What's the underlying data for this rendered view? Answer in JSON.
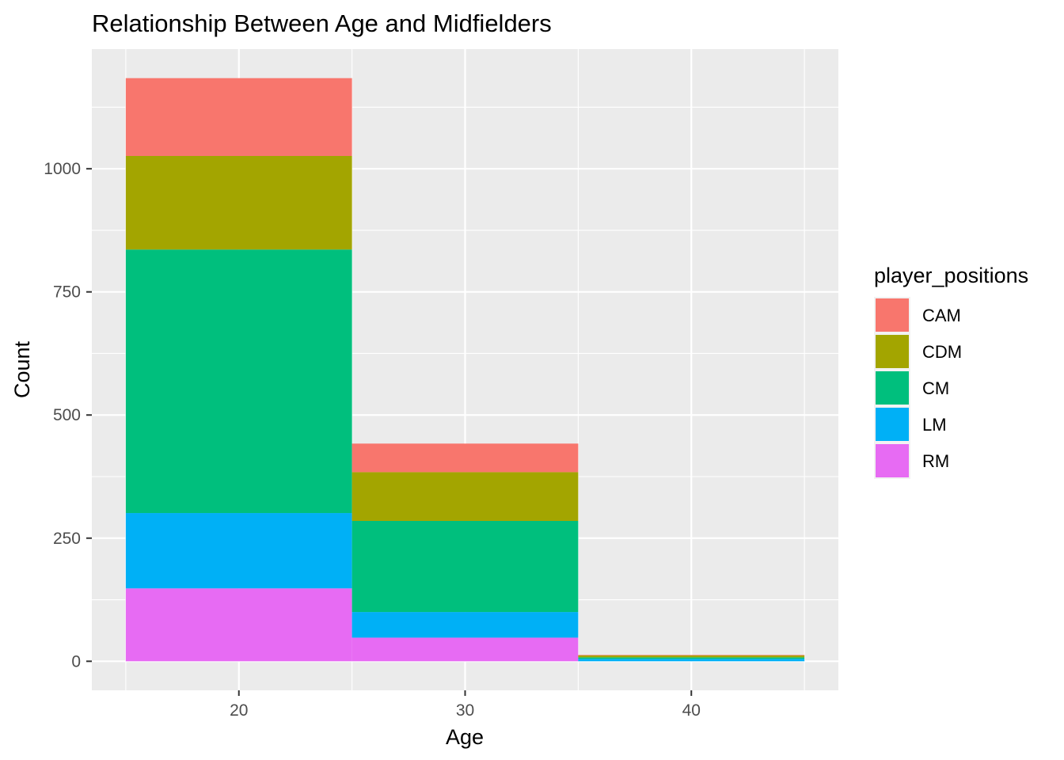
{
  "chart_data": {
    "type": "bar",
    "stacked": true,
    "title": "Relationship Between Age and  Midfielders",
    "xlabel": "Age",
    "ylabel": "Count",
    "bins": [
      {
        "from": 15,
        "to": 25
      },
      {
        "from": 25,
        "to": 35
      },
      {
        "from": 35,
        "to": 45
      }
    ],
    "series": [
      {
        "name": "RM",
        "color": "#E76BF3",
        "values": [
          148,
          48,
          0
        ]
      },
      {
        "name": "LM",
        "color": "#00B0F6",
        "values": [
          153,
          52,
          5
        ]
      },
      {
        "name": "CM",
        "color": "#00BF7D",
        "values": [
          535,
          185,
          3
        ]
      },
      {
        "name": "CDM",
        "color": "#A3A500",
        "values": [
          190,
          99,
          4
        ]
      },
      {
        "name": "CAM",
        "color": "#F8766D",
        "values": [
          158,
          58,
          1
        ]
      }
    ],
    "x_ticks": [
      20,
      30,
      40
    ],
    "y_ticks": [
      0,
      250,
      500,
      750,
      1000
    ],
    "xlim": [
      13.5,
      46.5
    ],
    "ylim": [
      -59,
      1243
    ],
    "grid": true,
    "legend": {
      "title": "player_positions",
      "placement": "right",
      "order": [
        "CAM",
        "CDM",
        "CM",
        "LM",
        "RM"
      ]
    },
    "colors": {
      "panel_background": "#EBEBEB",
      "grid": "#FFFFFF",
      "tick_text": "#4D4D4D"
    }
  }
}
